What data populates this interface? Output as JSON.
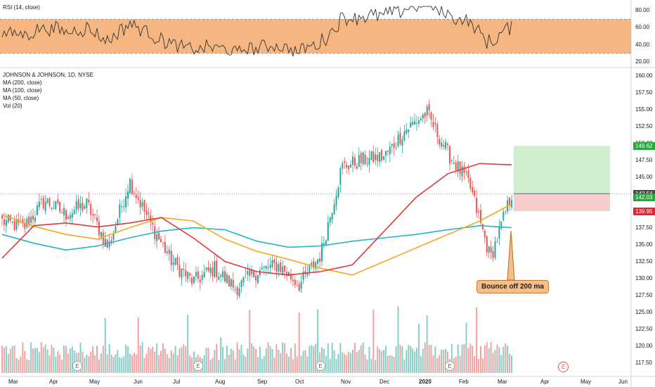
{
  "rsi_pane": {
    "title": "RSI (14, close)",
    "band_upper": 70,
    "band_lower": 30,
    "axis_ticks": [
      "80.00",
      "60.00",
      "40.00",
      "20.00"
    ],
    "band_color": "#f5b27a"
  },
  "price_pane": {
    "title": "JOHNSON & JOHNSON, 1D, NYSE",
    "indicators": [
      "MA (200, close)",
      "MA (100, close)",
      "MA (50, close)",
      "Vol (20)"
    ],
    "axis_ticks": [
      "160.00",
      "157.50",
      "155.00",
      "152.50",
      "150.00",
      "147.50",
      "145.00",
      "142.50",
      "140.00",
      "137.50",
      "135.00",
      "132.50",
      "130.00",
      "127.50",
      "125.00",
      "122.50",
      "120.00",
      "117.50"
    ],
    "price_tags": [
      {
        "text": "149.62",
        "color": "#27a83a"
      },
      {
        "text": "142.54",
        "color": "#4a4a4a"
      },
      {
        "text": "142.03",
        "color": "#27a83a"
      },
      {
        "text": "139.95",
        "color": "#e3262f"
      }
    ],
    "callout": "Bounce off 200 ma",
    "earnings_marker": "E"
  },
  "time_axis": [
    "Mar",
    "Apr",
    "May",
    "Jun",
    "Jul",
    "Aug",
    "Sep",
    "Oct",
    "Nov",
    "Dec",
    "2020",
    "Feb",
    "Mar",
    "Apr",
    "May",
    "Jun"
  ],
  "colors": {
    "up": "#26a69a",
    "down": "#ef5350",
    "ma200": "#26b3c8",
    "ma100": "#f5a623",
    "ma50": "#e03a3a"
  },
  "chart_data": {
    "type": "candlestick",
    "ylim": [
      116,
      161
    ],
    "rsi_ylim": [
      15,
      90
    ],
    "ma_anchors": {
      "ma200": [
        136.5,
        135.2,
        134.2,
        134.8,
        136.0,
        137.0,
        137.5,
        137.2,
        135.5,
        134.6,
        134.8,
        135.5,
        136.0,
        136.5,
        137.2,
        137.8,
        137.5
      ],
      "ma100": [
        139.4,
        137.7,
        136.5,
        135.8,
        137.5,
        139.0,
        138.5,
        135.8,
        134.0,
        132.8,
        131.5,
        130.5,
        132.5,
        134.5,
        136.5,
        138.5,
        141.0
      ],
      "ma50": [
        133.0,
        137.8,
        138.2,
        137.6,
        138.2,
        139.0,
        136.0,
        132.5,
        131.0,
        130.5,
        131.0,
        132.0,
        137.0,
        142.0,
        145.5,
        147.0,
        146.8
      ]
    },
    "price_anchors": [
      138.5,
      137.5,
      141.5,
      139.5,
      141.0,
      134.5,
      144.5,
      138.0,
      132.5,
      129.5,
      131.5,
      128.5,
      131.0,
      132.0,
      129.0,
      133.5,
      146.5,
      147.5,
      148.0,
      152.0,
      154.5,
      148.5,
      144.0,
      133.0,
      142.5
    ],
    "trade_zone": {
      "target": 149.62,
      "entry": 142.54,
      "stop": 139.95,
      "last": 142.03
    }
  }
}
